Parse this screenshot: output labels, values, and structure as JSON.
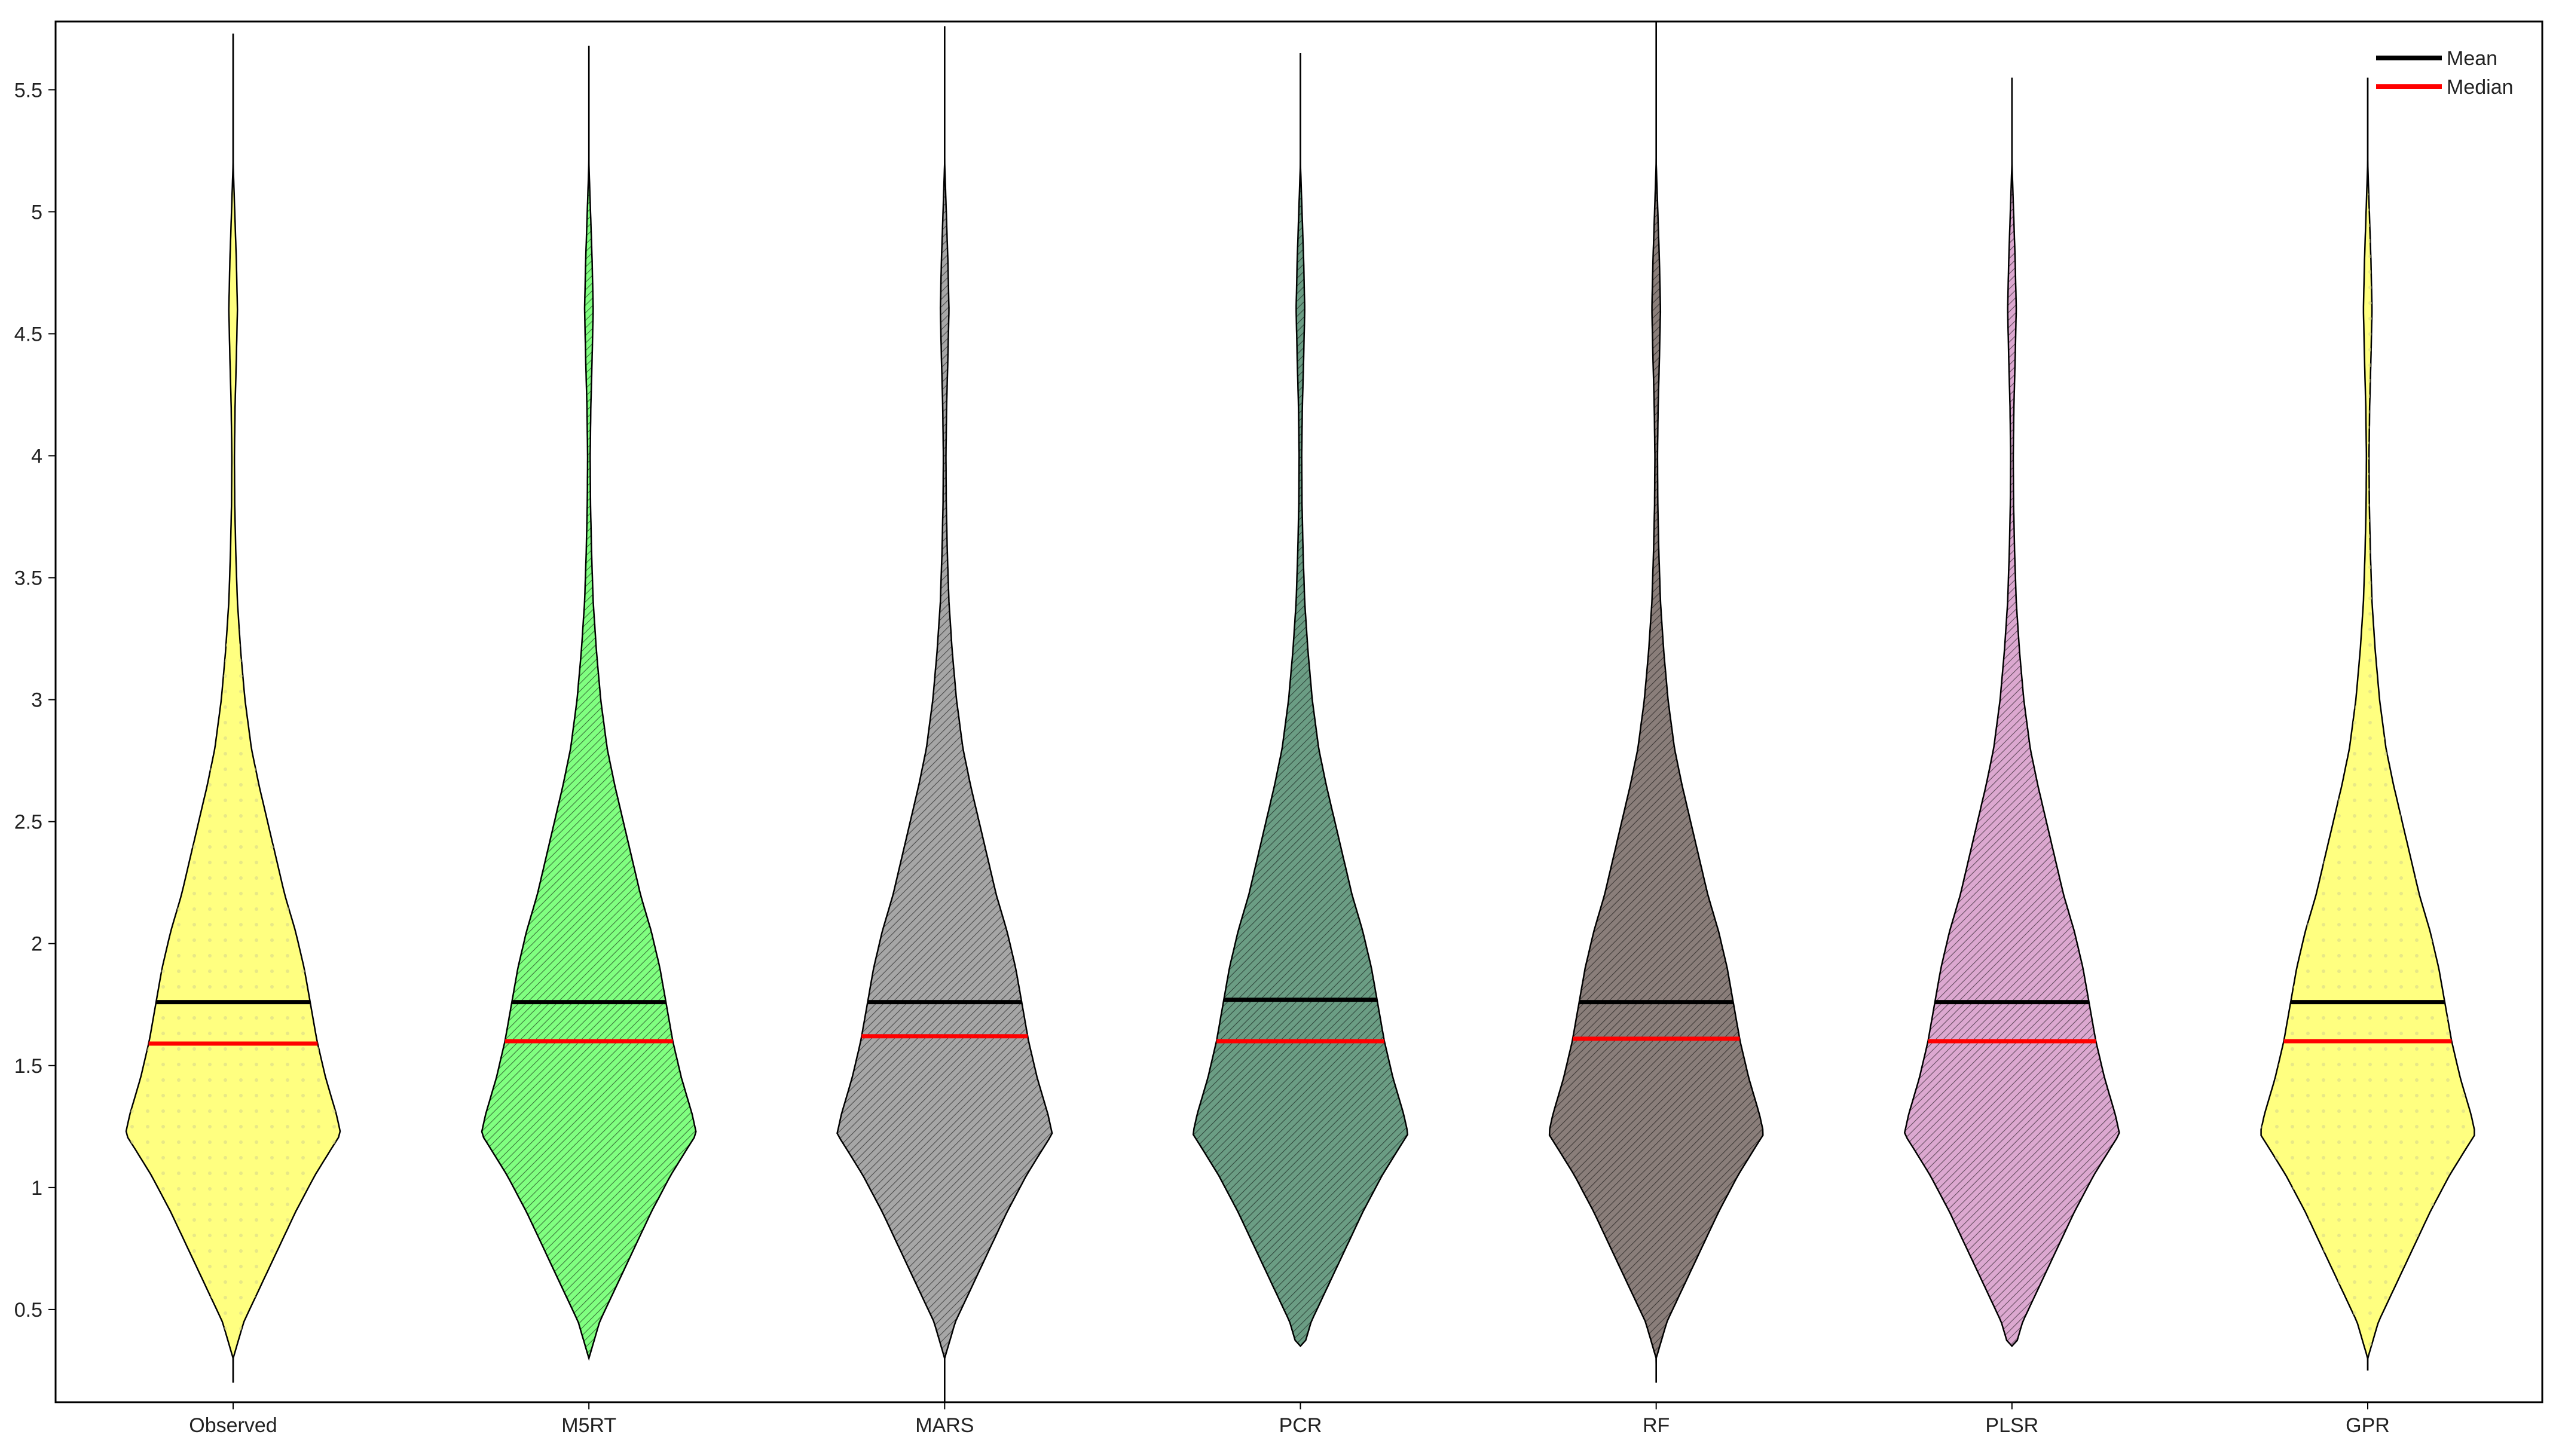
{
  "chart_data": {
    "type": "violin",
    "title": "",
    "xlabel": "",
    "ylabel": "",
    "ylim": [
      0.12,
      5.78
    ],
    "yticks": [
      0.5,
      1,
      1.5,
      2,
      2.5,
      3,
      3.5,
      4,
      4.5,
      5,
      5.5
    ],
    "ytick_labels": [
      "0.5",
      "1",
      "1.5",
      "2",
      "2.5",
      "3",
      "3.5",
      "4",
      "4.5",
      "5",
      "5.5"
    ],
    "grid": false,
    "legend": {
      "position": "top-right",
      "entries": [
        {
          "label": "Mean",
          "color": "#000000"
        },
        {
          "label": "Median",
          "color": "#ff0000"
        }
      ]
    },
    "density_profile": {
      "y": [
        0.3,
        0.45,
        0.6,
        0.75,
        0.9,
        1.05,
        1.15,
        1.22,
        1.3,
        1.45,
        1.6,
        1.75,
        1.9,
        2.05,
        2.2,
        2.35,
        2.5,
        2.65,
        2.8,
        3.0,
        3.2,
        3.4,
        3.6,
        3.8,
        4.0,
        4.2,
        4.4,
        4.6,
        4.8,
        5.0,
        5.2
      ],
      "relative_width": [
        0.0,
        0.1,
        0.26,
        0.42,
        0.58,
        0.76,
        0.9,
        1.0,
        0.96,
        0.86,
        0.78,
        0.72,
        0.66,
        0.58,
        0.48,
        0.4,
        0.32,
        0.24,
        0.17,
        0.11,
        0.07,
        0.04,
        0.025,
        0.015,
        0.012,
        0.018,
        0.03,
        0.04,
        0.03,
        0.015,
        0.0
      ]
    },
    "series": [
      {
        "name": "Observed",
        "color": "#ffff80",
        "min": 0.2,
        "max": 5.73,
        "mean": 1.76,
        "median": 1.59
      },
      {
        "name": "M5RT",
        "color": "#80ff80",
        "min": 0.3,
        "max": 5.68,
        "mean": 1.76,
        "median": 1.6
      },
      {
        "name": "MARS",
        "color": "#a6a6a6",
        "min": 0.12,
        "max": 5.76,
        "mean": 1.76,
        "median": 1.62
      },
      {
        "name": "PCR",
        "color": "#6b9d84",
        "min": 0.35,
        "max": 5.65,
        "mean": 1.77,
        "median": 1.6
      },
      {
        "name": "RF",
        "color": "#8a7e7a",
        "min": 0.2,
        "max": 5.78,
        "mean": 1.76,
        "median": 1.61
      },
      {
        "name": "PLSR",
        "color": "#dca8d0",
        "min": 0.35,
        "max": 5.55,
        "mean": 1.76,
        "median": 1.6
      },
      {
        "name": "GPR",
        "color": "#ffff80",
        "min": 0.25,
        "max": 5.55,
        "mean": 1.76,
        "median": 1.6
      }
    ]
  }
}
